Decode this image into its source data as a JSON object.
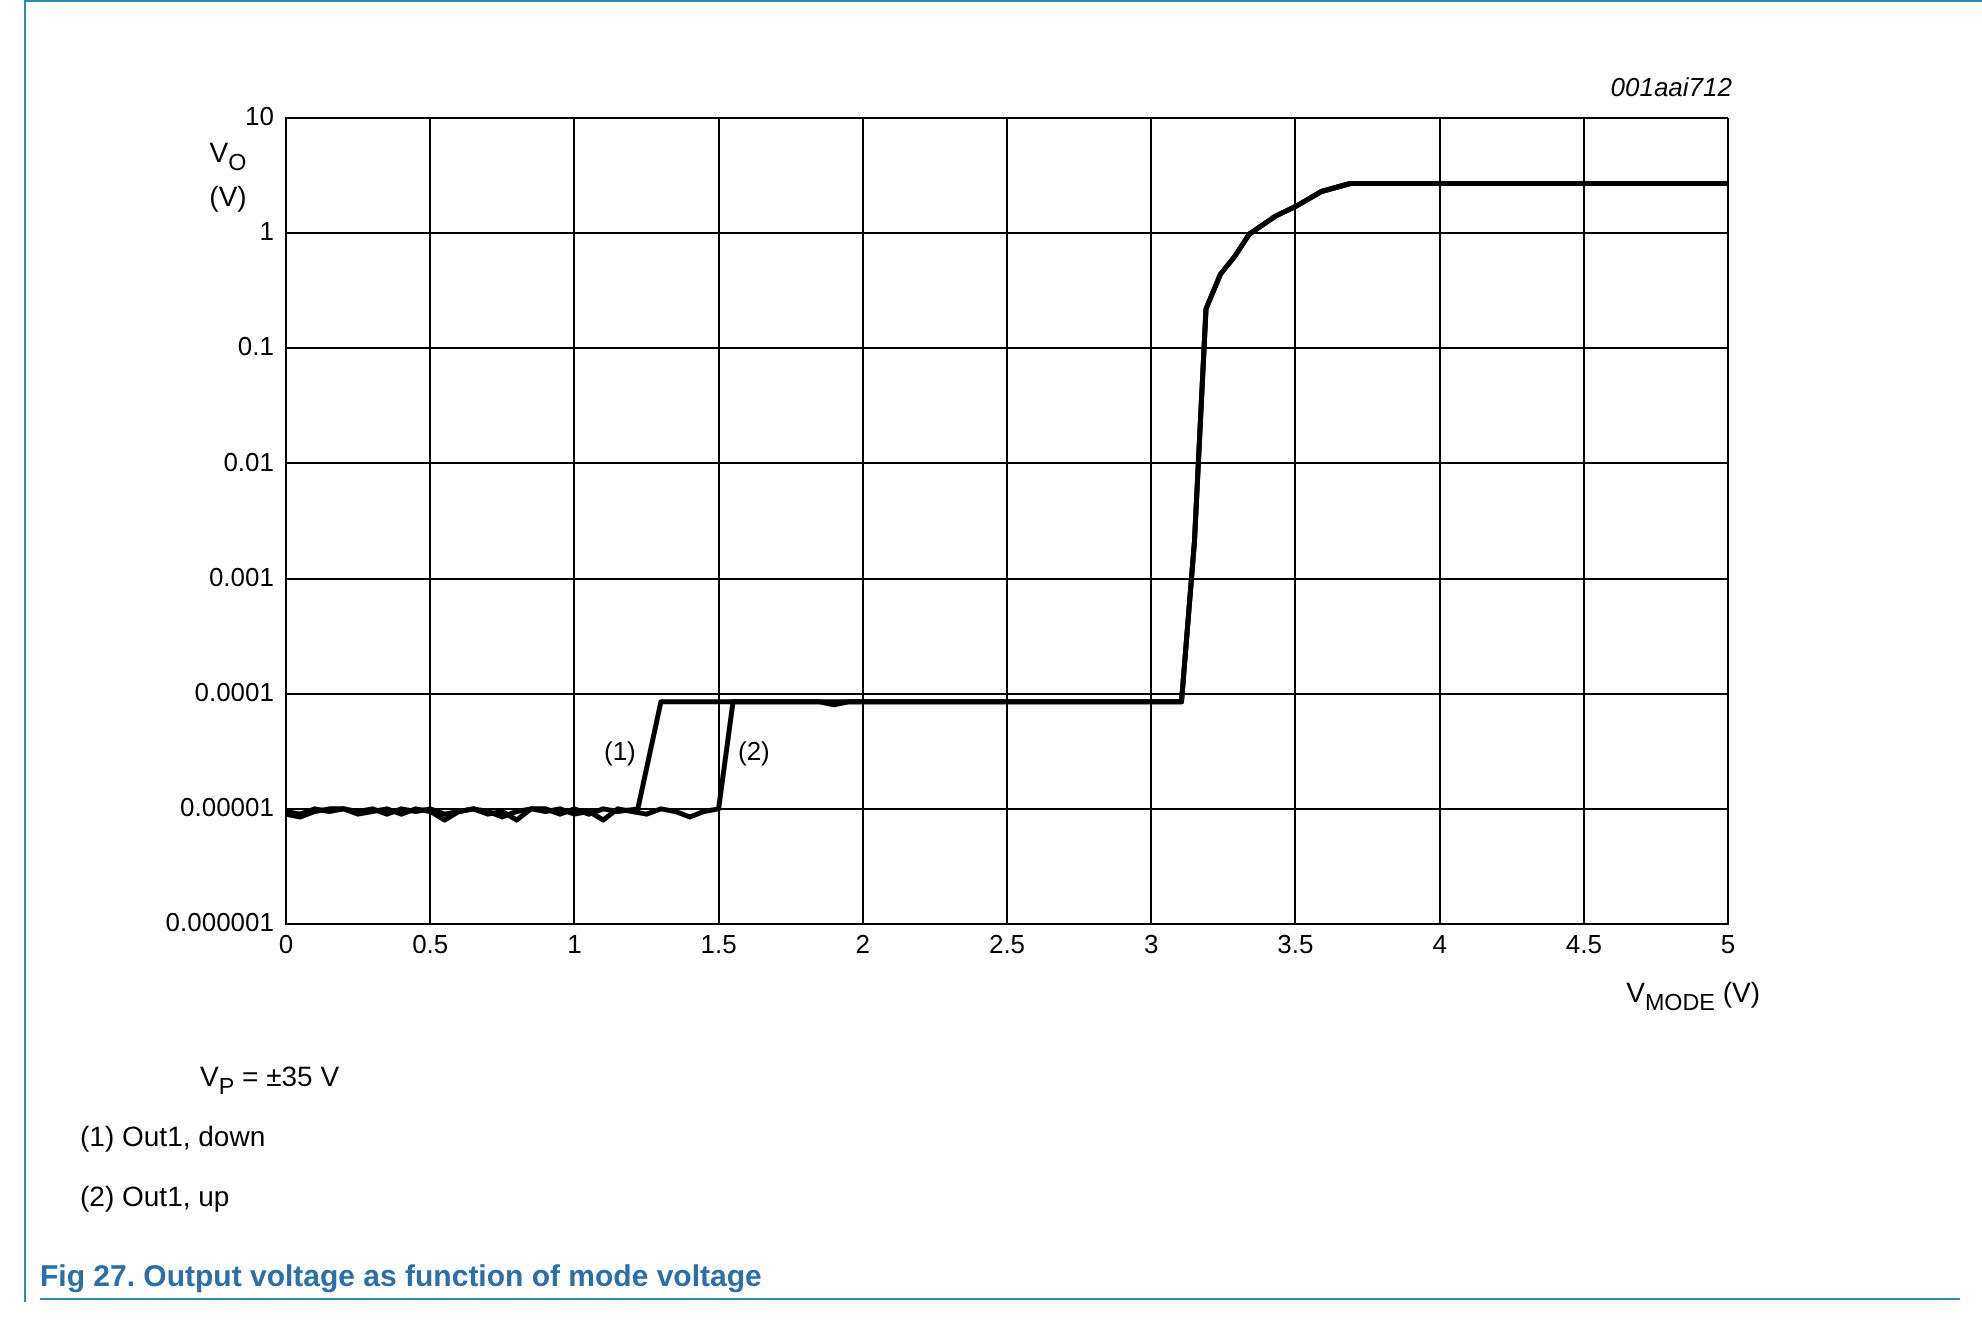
{
  "chart_data": {
    "type": "line",
    "title": "Fig 27.   Output voltage as function of mode voltage",
    "xlabel": "V$_{MODE}$ (V)",
    "ylabel": "V$_{O}$ (V)",
    "annotations": [
      "001aai712",
      "V$_{P}$ = ±35 V",
      "(1)   Out1, down",
      "(2)   Out1, up",
      "(1)",
      "(2)"
    ],
    "series": [
      {
        "color": "#000000",
        "x": [
          0,
          0.05,
          0.1,
          0.15,
          0.2,
          0.25,
          0.3,
          0.35,
          0.4,
          0.45,
          0.5,
          0.55,
          0.6,
          0.65,
          0.7,
          0.75,
          0.8,
          0.85,
          0.9,
          0.95,
          1.0,
          1.05,
          1.1,
          1.15,
          1.22,
          1.3,
          1.85,
          1.9,
          1.95,
          3.105,
          3.15,
          3.19,
          3.24,
          3.29,
          3.34,
          3.43,
          3.5,
          3.59,
          3.69,
          5
        ],
        "values": [
          9e-06,
          8.5e-06,
          9.5e-06,
          1e-05,
          1e-05,
          9.5e-06,
          1e-05,
          9e-06,
          1e-05,
          9.5e-06,
          1e-05,
          9e-06,
          9.5e-06,
          1e-05,
          9.5e-06,
          8.5e-06,
          9.5e-06,
          1e-05,
          1e-05,
          9e-06,
          1e-05,
          9e-06,
          1e-05,
          9.5e-06,
          1e-05,
          8.5e-05,
          8.5e-05,
          8e-05,
          8.5e-05,
          8.5e-05,
          0.0021,
          0.22,
          0.44,
          0.63,
          0.98,
          1.4,
          1.7,
          2.3,
          2.7,
          2.7
        ]
      },
      {
        "color": "#000000",
        "x": [
          0,
          0.05,
          0.1,
          0.15,
          0.2,
          0.25,
          0.3,
          0.35,
          0.4,
          0.45,
          0.5,
          0.55,
          0.6,
          0.65,
          0.7,
          0.75,
          0.8,
          0.85,
          0.9,
          0.95,
          1.0,
          1.05,
          1.1,
          1.15,
          1.2,
          1.25,
          1.3,
          1.35,
          1.4,
          1.45,
          1.5,
          1.55,
          3.105,
          3.15,
          3.19,
          3.24,
          3.29,
          3.34,
          3.43,
          3.5,
          3.59,
          3.69,
          5
        ],
        "values": [
          9.5e-06,
          9e-06,
          1e-05,
          9.5e-06,
          1e-05,
          9e-06,
          9.5e-06,
          1e-05,
          9e-06,
          1e-05,
          9.5e-06,
          8e-06,
          9.5e-06,
          1e-05,
          9e-06,
          9.5e-06,
          8e-06,
          1e-05,
          9.5e-06,
          1e-05,
          9e-06,
          9.5e-06,
          8e-06,
          1e-05,
          9.5e-06,
          9e-06,
          1e-05,
          9.5e-06,
          8.5e-06,
          9.5e-06,
          1e-05,
          8.5e-05,
          8.5e-05,
          0.0021,
          0.22,
          0.44,
          0.63,
          0.98,
          1.4,
          1.7,
          2.3,
          2.7,
          2.7
        ]
      }
    ],
    "xlim": [
      0,
      5
    ],
    "xticks": [
      0,
      0.5,
      1,
      1.5,
      2,
      2.5,
      3,
      3.5,
      4,
      4.5,
      5
    ],
    "ylim": [
      1e-06,
      10
    ],
    "yticks": [
      {
        "value": 1e-06,
        "label": "0.000001"
      },
      {
        "value": 1e-05,
        "label": "0.00001"
      },
      {
        "value": 0.0001,
        "label": "0.0001"
      },
      {
        "value": 0.001,
        "label": "0.001"
      },
      {
        "value": 0.01,
        "label": "0.01"
      },
      {
        "value": 0.1,
        "label": "0.1"
      },
      {
        "value": 1,
        "label": "1"
      },
      {
        "value": 10,
        "label": "10"
      }
    ],
    "log": true,
    "grid": true,
    "marker": "none",
    "line_style": "solid"
  }
}
